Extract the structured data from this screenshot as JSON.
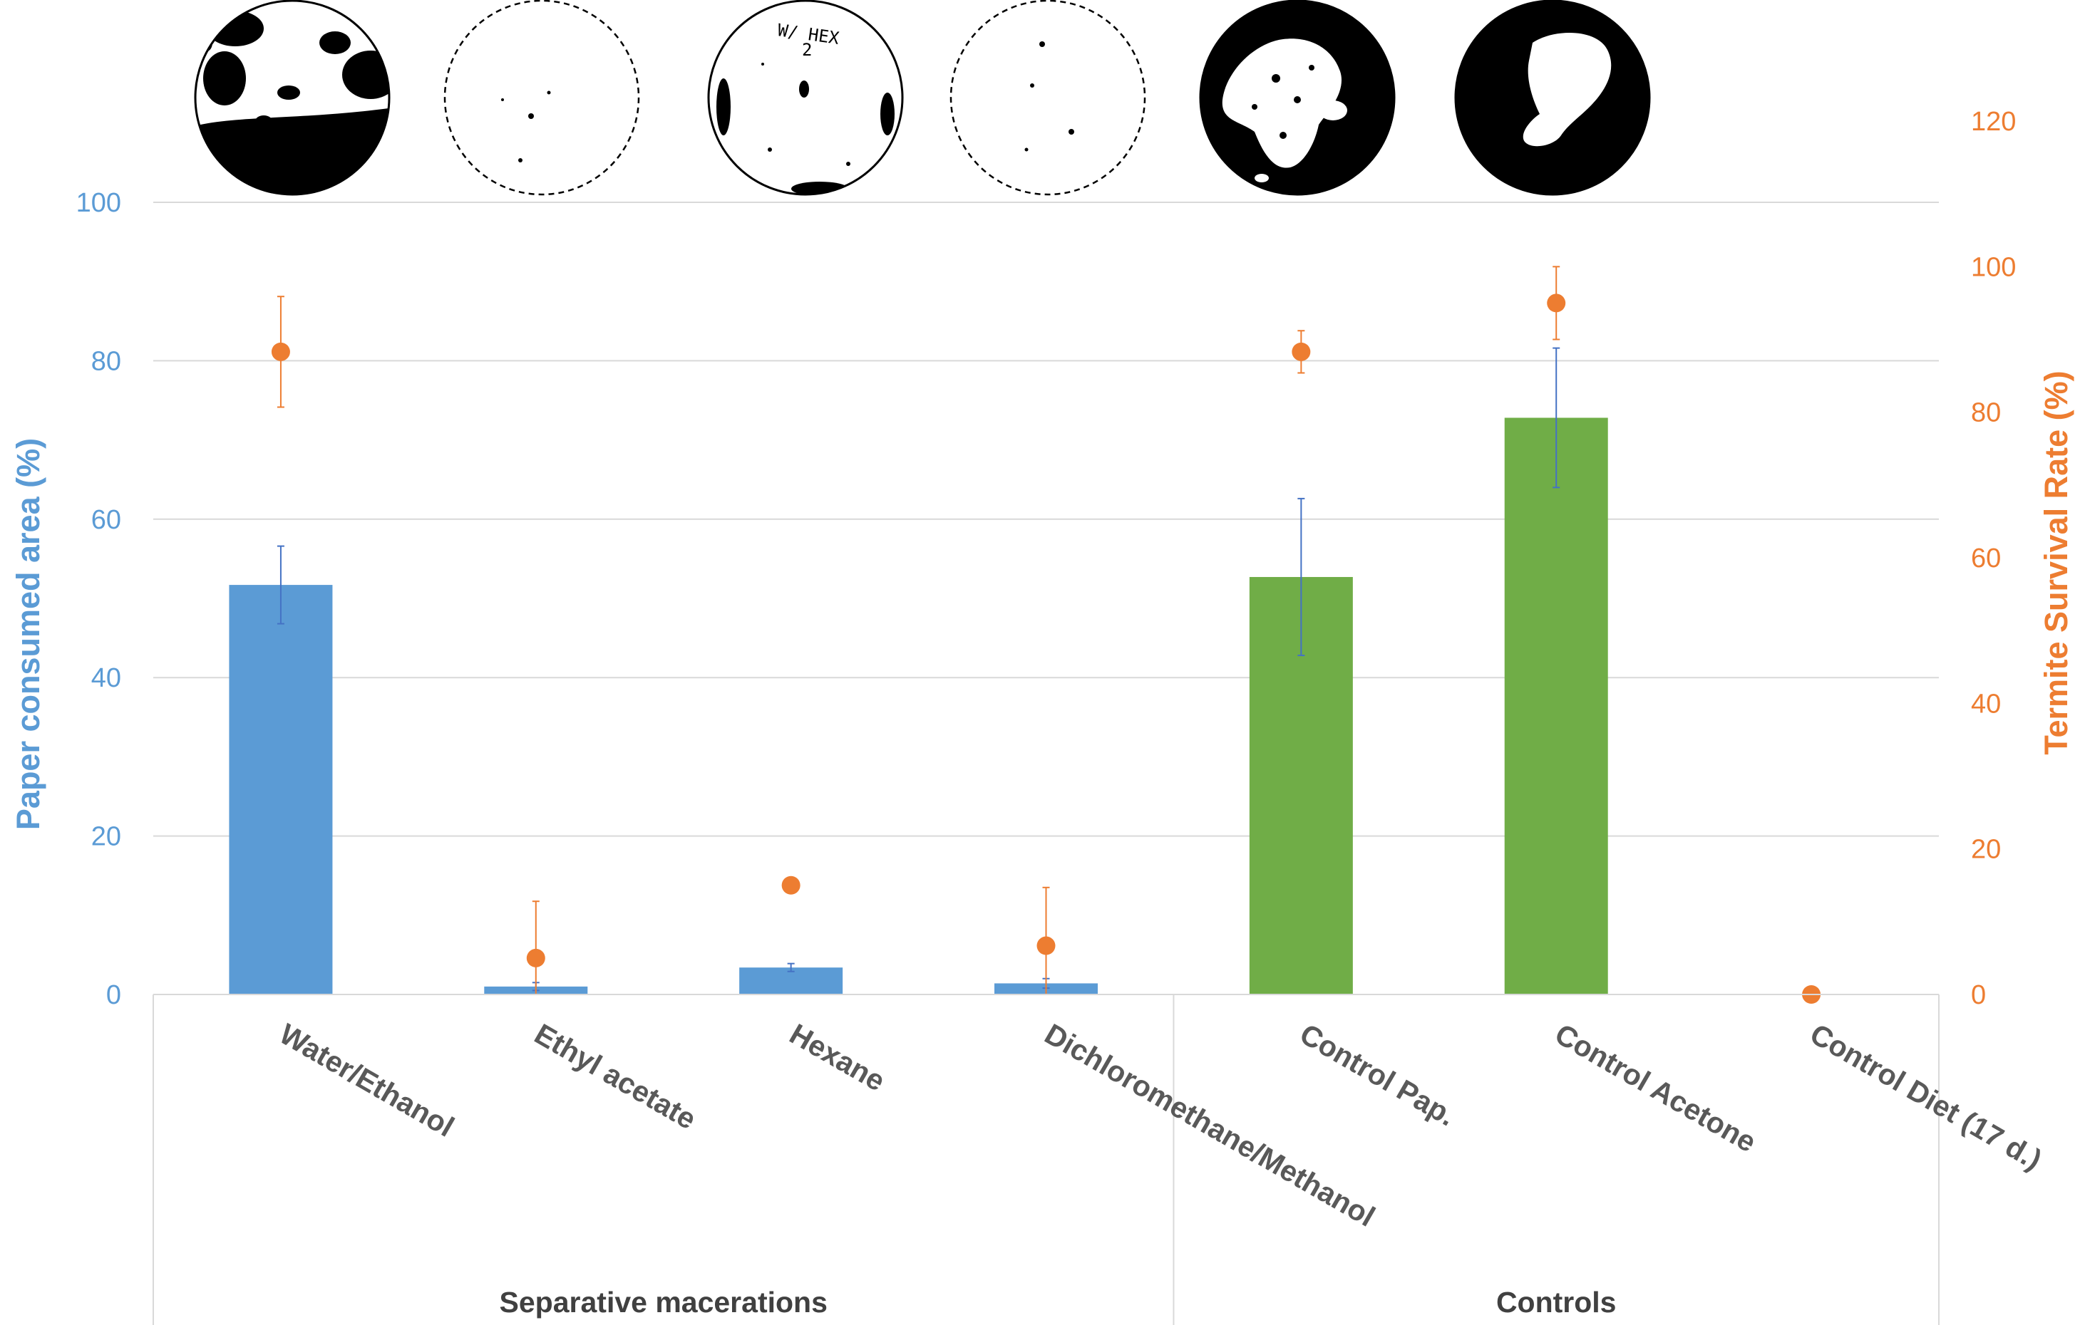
{
  "chart_data": {
    "type": "bar",
    "title": "",
    "categories": [
      "Water/Ethanol",
      "Ethyl acetate",
      "Hexane",
      "Dichloromethane/Methanol",
      "Control Pap.",
      "Control Acetone",
      "Control Diet (17 d.)"
    ],
    "groups": [
      {
        "label": "Separative macerations",
        "categories": [
          0,
          1,
          2,
          3
        ]
      },
      {
        "label": "Controls",
        "categories": [
          4,
          5,
          6
        ]
      }
    ],
    "series": [
      {
        "name": "Paper consumed area (%)",
        "type": "bar",
        "axis": "left",
        "values": [
          51.7,
          1.0,
          3.4,
          1.4,
          52.7,
          72.8,
          null
        ],
        "error": [
          4.9,
          0.5,
          0.5,
          0.6,
          9.9,
          8.8,
          null
        ],
        "bar_colors": [
          "#5b9bd5",
          "#5b9bd5",
          "#5b9bd5",
          "#5b9bd5",
          "#70ad47",
          "#70ad47",
          "#70ad47"
        ]
      },
      {
        "name": "Termite Survival Rate (%)",
        "type": "scatter",
        "axis": "right",
        "color": "#ed7d31",
        "values": [
          88.3,
          5.0,
          15.0,
          6.7,
          88.3,
          95.0,
          0
        ],
        "error": [
          7.6,
          7.8,
          null,
          8.0,
          2.9,
          5.0,
          null
        ]
      }
    ],
    "ylabel": "Paper consumed area (%)",
    "y2label": "Termite Survival Rate (%)",
    "ylim": [
      0,
      100
    ],
    "y2lim": [
      0,
      120
    ],
    "yticks": [
      "0",
      "20",
      "40",
      "60",
      "80",
      "100"
    ],
    "y2ticks": [
      "0",
      "20",
      "40",
      "60",
      "80",
      "100",
      "120"
    ],
    "grid": true,
    "dish_images": [
      {
        "category": "Water/Ethanol",
        "annotation": ""
      },
      {
        "category": "Ethyl acetate",
        "annotation": ""
      },
      {
        "category": "Hexane",
        "annotation": "W/ HEX 2"
      },
      {
        "category": "Dichloromethane/Methanol",
        "annotation": ""
      },
      {
        "category": "Control Pap.",
        "annotation": ""
      },
      {
        "category": "Control Acetone",
        "annotation": ""
      }
    ],
    "colors": {
      "left_axis": "#5b9bd5",
      "right_axis": "#ed7d31",
      "treatment_bar": "#5b9bd5",
      "control_bar": "#70ad47",
      "survival_marker": "#ed7d31",
      "gridline": "#d9d9d9",
      "category_text": "#595959"
    }
  }
}
